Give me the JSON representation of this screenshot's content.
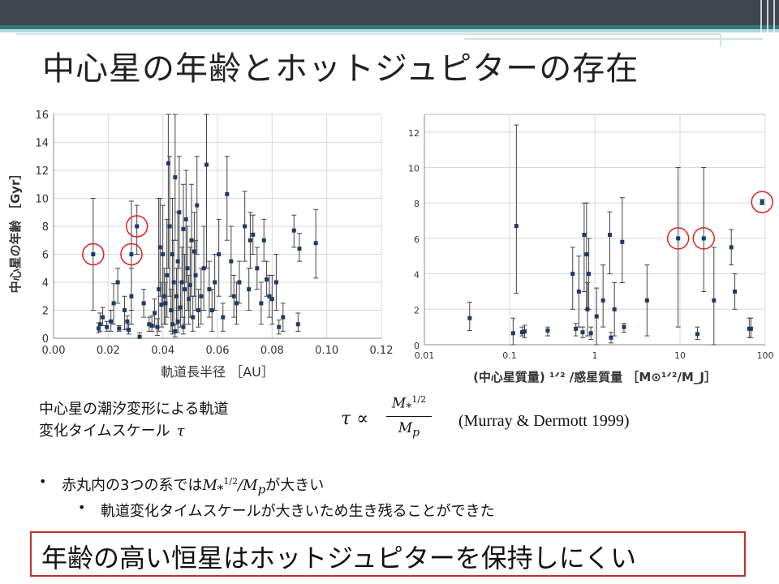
{
  "slide": {
    "title": "中心星の年齢とホットジュピターの存在",
    "theme_colors": {
      "dark": "#3f4650",
      "teal": "#2e7a7c",
      "light_teal": "#b8d6d6"
    }
  },
  "caption": {
    "line1": "中心星の潮汐変形による軌道",
    "line2": "変化タイムスケール",
    "symbol": "τ"
  },
  "formula": {
    "lhs": "τ ∝",
    "num_base": "M",
    "num_sub": "*",
    "num_sup": "1/2",
    "den_base": "M",
    "den_sub": "p"
  },
  "citation": "(Murray & Dermott 1999)",
  "bullets": [
    {
      "pre": "赤丸内の3つの系では",
      "math_base": "M",
      "math_sub": "*",
      "math_sup": "1/2",
      "math_rest": "/M",
      "math_rest_sub": "p",
      "post": "が大きい"
    },
    {
      "text": "軌道変化タイムスケールが大きいため生き残ることができた"
    }
  ],
  "conclusion": "年齢の高い恒星はホットジュピターを保持しにくい",
  "chart_data": [
    {
      "type": "scatter",
      "xlabel": "軌道長半径 ［AU］",
      "ylabel": "中心星の年齢 ［Gyr］",
      "xlim": [
        0,
        0.12
      ],
      "ylim": [
        0,
        16
      ],
      "x_ticks": [
        "0.00",
        "0.02",
        "0.04",
        "0.06",
        "0.08",
        "0.10",
        "0.12"
      ],
      "y_ticks": [
        "0",
        "2",
        "4",
        "6",
        "8",
        "10",
        "12",
        "14",
        "16"
      ],
      "grid": true,
      "marker_color": "#1f3a63",
      "highlight_color": "#e02020",
      "highlighted": [
        {
          "x": 0.0145,
          "y": 6.0
        },
        {
          "x": 0.0285,
          "y": 6.0
        },
        {
          "x": 0.0305,
          "y": 8.0
        }
      ],
      "points": [
        [
          0.0145,
          6.0,
          2,
          10
        ],
        [
          0.0165,
          0.7,
          0.4,
          1.1
        ],
        [
          0.017,
          1.0,
          0.5,
          1.8
        ],
        [
          0.018,
          1.5,
          0.9,
          2.2
        ],
        [
          0.0195,
          0.8,
          0.5,
          1.2
        ],
        [
          0.021,
          1.2,
          0.5,
          2.0
        ],
        [
          0.022,
          2.5,
          1.0,
          3.9
        ],
        [
          0.0235,
          4.0,
          2.5,
          5.0
        ],
        [
          0.024,
          0.7,
          0.5,
          0.9
        ],
        [
          0.026,
          2.0,
          0.6,
          3.0
        ],
        [
          0.027,
          1.2,
          0.7,
          1.6
        ],
        [
          0.0275,
          0.6,
          0.3,
          1.0
        ],
        [
          0.0285,
          3.0,
          1.0,
          5.0
        ],
        [
          0.0285,
          6.0,
          2,
          9.8
        ],
        [
          0.0305,
          8.0,
          6,
          9.5
        ],
        [
          0.0315,
          0.1,
          0.0,
          0.4
        ],
        [
          0.033,
          2.5,
          1.5,
          3.5
        ],
        [
          0.035,
          1.0,
          0.5,
          1.5
        ],
        [
          0.036,
          0.9,
          0.5,
          1.6
        ],
        [
          0.037,
          1.8,
          0.8,
          2.8
        ],
        [
          0.038,
          0.8,
          0.2,
          1.4
        ],
        [
          0.0385,
          3.5,
          0.5,
          10.0
        ],
        [
          0.039,
          6.5,
          3,
          10
        ],
        [
          0.0395,
          2.4,
          0.8,
          4.0
        ],
        [
          0.04,
          6.0,
          2.5,
          9.5
        ],
        [
          0.0405,
          3.0,
          1.0,
          5.0
        ],
        [
          0.041,
          2.5,
          1,
          4
        ],
        [
          0.0415,
          4.5,
          1.5,
          8.5
        ],
        [
          0.042,
          12.5,
          5,
          16
        ],
        [
          0.0425,
          8.0,
          3,
          13
        ],
        [
          0.043,
          2.0,
          0.5,
          3.5
        ],
        [
          0.0435,
          6.0,
          2,
          10
        ],
        [
          0.044,
          4.0,
          1,
          7
        ],
        [
          0.0445,
          11.5,
          7,
          16
        ],
        [
          0.045,
          3.0,
          1,
          5
        ],
        [
          0.0455,
          5.5,
          2,
          9
        ],
        [
          0.046,
          9.0,
          5,
          13
        ],
        [
          0.0465,
          2.2,
          0.8,
          4
        ],
        [
          0.047,
          4.0,
          1.5,
          6.5
        ],
        [
          0.0475,
          7.8,
          4,
          11
        ],
        [
          0.048,
          3.5,
          1,
          6
        ],
        [
          0.0485,
          8.5,
          4,
          12
        ],
        [
          0.049,
          5.0,
          2,
          8
        ],
        [
          0.0495,
          2.8,
          1,
          4.5
        ],
        [
          0.05,
          3.8,
          1.5,
          6.5
        ],
        [
          0.0505,
          7.0,
          3,
          11
        ],
        [
          0.051,
          1.5,
          0.5,
          3
        ],
        [
          0.0515,
          6.2,
          3,
          9
        ],
        [
          0.052,
          4.5,
          2,
          7
        ],
        [
          0.0525,
          9.5,
          6,
          13
        ],
        [
          0.053,
          2.0,
          0.8,
          3.5
        ],
        [
          0.054,
          3.0,
          1,
          5
        ],
        [
          0.055,
          5.0,
          2,
          8
        ],
        [
          0.056,
          12.4,
          5,
          16
        ],
        [
          0.057,
          3.5,
          1.5,
          5.5
        ],
        [
          0.058,
          2.0,
          0.5,
          3.5
        ],
        [
          0.059,
          4.0,
          2,
          6
        ],
        [
          0.0605,
          6.0,
          3,
          8.5
        ],
        [
          0.062,
          1.5,
          0.5,
          2.5
        ],
        [
          0.0635,
          10.3,
          7,
          13
        ],
        [
          0.065,
          5.5,
          3,
          8
        ],
        [
          0.066,
          3.0,
          1.5,
          4.5
        ],
        [
          0.067,
          2.5,
          1,
          4
        ],
        [
          0.068,
          4.0,
          2.5,
          5.5
        ],
        [
          0.07,
          8.0,
          5.5,
          10.5
        ],
        [
          0.0715,
          3.5,
          2,
          5
        ],
        [
          0.072,
          7.0,
          5,
          9
        ],
        [
          0.073,
          7.4,
          6,
          8.8
        ],
        [
          0.0745,
          5.0,
          3.5,
          6.5
        ],
        [
          0.076,
          2.5,
          1,
          4
        ],
        [
          0.077,
          7.0,
          5.5,
          8.5
        ],
        [
          0.078,
          4.2,
          3,
          5.5
        ],
        [
          0.079,
          3.0,
          1.5,
          4.5
        ],
        [
          0.08,
          2.8,
          1,
          4.5
        ],
        [
          0.0815,
          4.0,
          2,
          6
        ],
        [
          0.0825,
          0.8,
          0.3,
          1.3
        ],
        [
          0.084,
          1.5,
          0.5,
          2.5
        ],
        [
          0.088,
          7.7,
          6.5,
          8.8
        ],
        [
          0.0895,
          1.0,
          0.5,
          1.8
        ],
        [
          0.09,
          6.4,
          5.5,
          7.5
        ],
        [
          0.096,
          6.8,
          4.3,
          9.2
        ],
        [
          0.0435,
          1.0,
          0.3,
          2
        ],
        [
          0.0445,
          0.5,
          0.1,
          1
        ],
        [
          0.0455,
          1.2,
          0.4,
          2.2
        ],
        [
          0.0475,
          0.8,
          0.3,
          1.5
        ]
      ]
    },
    {
      "type": "scatter",
      "xlabel": "(中心星質量) ¹ᐟ² /惑星質量 ［M⊙¹ᐟ²/M_J］",
      "ylabel": "",
      "x_scale": "log",
      "xlim": [
        0.01,
        100
      ],
      "ylim": [
        0,
        13
      ],
      "x_ticks": [
        "0.01",
        "0.1",
        "1",
        "10",
        "100"
      ],
      "y_ticks": [
        "0",
        "2",
        "4",
        "6",
        "8",
        "10",
        "12"
      ],
      "grid": true,
      "marker_color": "#1f3a63",
      "highlight_color": "#e02020",
      "highlighted": [
        {
          "x": 9.5,
          "y": 6.0
        },
        {
          "x": 19,
          "y": 6.0
        },
        {
          "x": 92,
          "y": 8.05
        }
      ],
      "points": [
        [
          0.034,
          1.5,
          0.8,
          2.4
        ],
        [
          0.11,
          0.65,
          0.0,
          1.5
        ],
        [
          0.12,
          6.7,
          2.9,
          12.4
        ],
        [
          0.14,
          0.7,
          0.5,
          1.0
        ],
        [
          0.15,
          0.75,
          0.4,
          1.1
        ],
        [
          0.28,
          0.8,
          0.5,
          1.0
        ],
        [
          0.55,
          4.0,
          2,
          5.5
        ],
        [
          0.6,
          0.9,
          0.5,
          1.2
        ],
        [
          0.65,
          3.0,
          1,
          5
        ],
        [
          0.72,
          0.7,
          0.4,
          1.0
        ],
        [
          0.75,
          6.2,
          3,
          8
        ],
        [
          0.8,
          5.1,
          2,
          8
        ],
        [
          0.82,
          2.0,
          0.5,
          3.5
        ],
        [
          0.85,
          4.0,
          2,
          6
        ],
        [
          0.9,
          0.65,
          0.3,
          1.0
        ],
        [
          1.05,
          1.6,
          0.0,
          3.2
        ],
        [
          1.25,
          2.5,
          1,
          4.5
        ],
        [
          1.5,
          6.2,
          4,
          7.5
        ],
        [
          1.55,
          0.4,
          0.1,
          0.7
        ],
        [
          1.7,
          2.0,
          0.5,
          3.5
        ],
        [
          2.1,
          5.8,
          3.5,
          8.3
        ],
        [
          2.2,
          1.0,
          0.7,
          1.2
        ],
        [
          4.1,
          2.5,
          0.5,
          4.5
        ],
        [
          9.5,
          6.0,
          1,
          10
        ],
        [
          16,
          0.6,
          0.3,
          1.0
        ],
        [
          19,
          6.0,
          3,
          10
        ],
        [
          25,
          2.5,
          0,
          5.5
        ],
        [
          40,
          5.5,
          4.5,
          6.5
        ],
        [
          44,
          3.0,
          2,
          4
        ],
        [
          65,
          0.9,
          0.4,
          1.5
        ],
        [
          68,
          0.9,
          0.4,
          1.5
        ],
        [
          92,
          8.05,
          7.9,
          8.2
        ]
      ]
    }
  ]
}
